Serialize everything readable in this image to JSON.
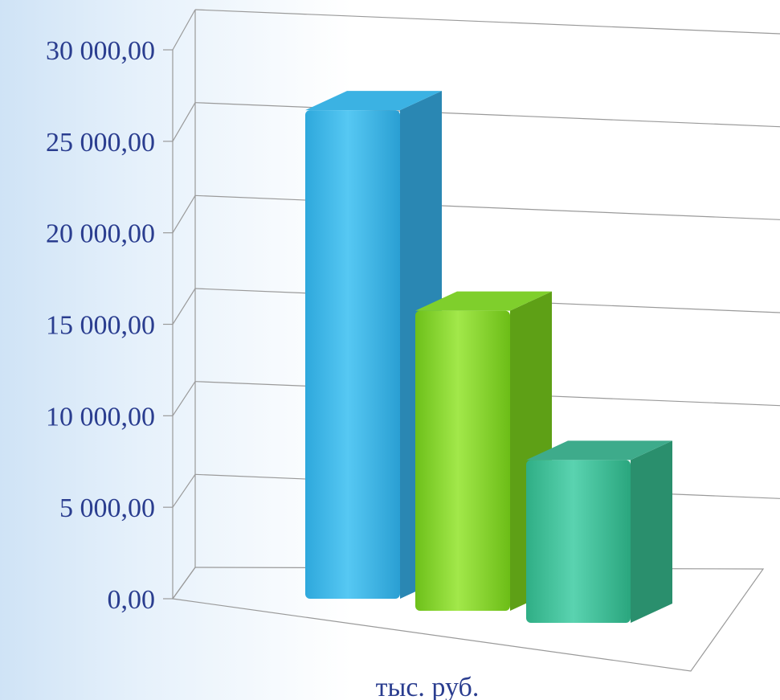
{
  "chart_data": {
    "type": "bar",
    "title": "",
    "xlabel": "",
    "ylabel": "",
    "categories": [
      "тыс. руб."
    ],
    "series": [
      {
        "values": [
          26700
        ],
        "color": "#3fb9e9"
      },
      {
        "values": [
          16400
        ],
        "color": "#8bd82c"
      },
      {
        "values": [
          8900
        ],
        "color": "#3fc29c"
      }
    ],
    "ylim": [
      0,
      30000
    ],
    "yticks": [
      0,
      5000,
      10000,
      15000,
      20000,
      25000,
      30000
    ],
    "ytick_labels": [
      "0,00",
      "5 000,00",
      "10 000,00",
      "15 000,00",
      "20 000,00",
      "25 000,00",
      "30 000,00"
    ],
    "grid": true,
    "legend": "none",
    "style": "3d-clustered-column"
  }
}
